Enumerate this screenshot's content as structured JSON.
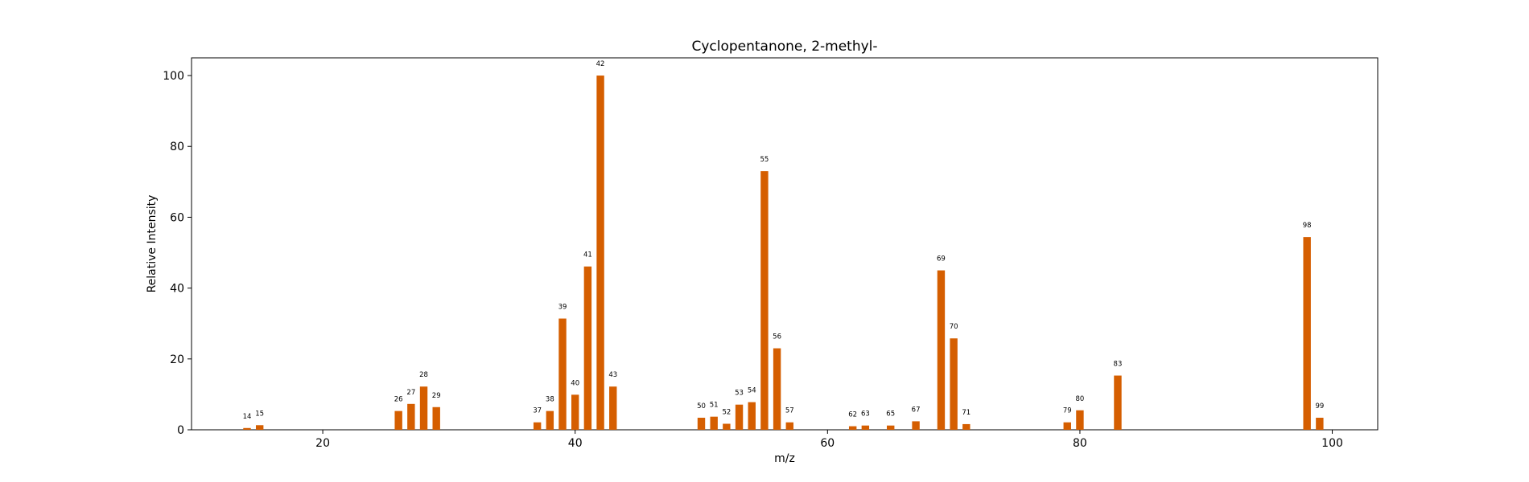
{
  "chart_data": {
    "type": "bar",
    "title": "Cyclopentanone, 2-methyl-",
    "xlabel": "m/z",
    "ylabel": "Relative Intensity",
    "xlim": [
      9.6,
      103.6
    ],
    "ylim": [
      0,
      105
    ],
    "xticks": [
      20,
      40,
      60,
      80,
      100
    ],
    "yticks": [
      0,
      20,
      40,
      60,
      80,
      100
    ],
    "grid": false,
    "bar_color": "#D55E00",
    "x": [
      14,
      15,
      26,
      27,
      28,
      29,
      37,
      38,
      39,
      40,
      41,
      42,
      43,
      50,
      51,
      52,
      53,
      54,
      55,
      56,
      57,
      62,
      63,
      65,
      67,
      69,
      70,
      71,
      79,
      80,
      83,
      98,
      99
    ],
    "values": [
      0.5,
      1.3,
      5.3,
      7.3,
      12.2,
      6.4,
      2.1,
      5.3,
      31.4,
      9.9,
      46.1,
      100.0,
      12.2,
      3.4,
      3.7,
      1.7,
      7.1,
      7.8,
      73.0,
      23.0,
      2.1,
      1.0,
      1.2,
      1.2,
      2.4,
      45.0,
      25.8,
      1.6,
      2.1,
      5.5,
      15.3,
      54.4,
      3.4
    ]
  }
}
